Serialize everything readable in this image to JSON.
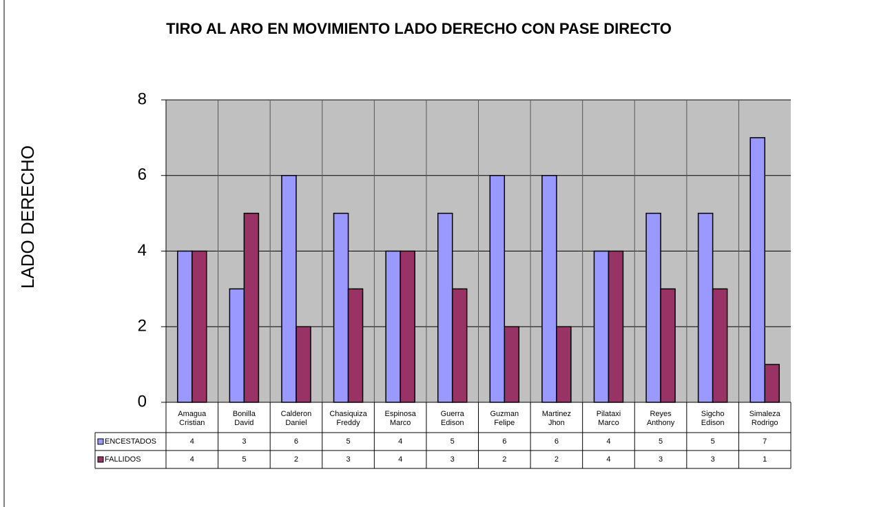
{
  "chart_data": {
    "type": "bar",
    "title": "TIRO AL ARO EN MOVIMIENTO LADO DERECHO CON PASE DIRECTO",
    "y_label": "LADO DERECHO",
    "categories": [
      "Amagua Cristian",
      "Bonilla David",
      "Calderon Daniel",
      "Chasiquiza Freddy",
      "Espinosa Marco",
      "Guerra Edison",
      "Guzman Felipe",
      "Martinez Jhon",
      "Pilataxi Marco",
      "Reyes Anthony",
      "Sigcho Edison",
      "Simaleza Rodrigo"
    ],
    "series": [
      {
        "name": "ENCESTADOS",
        "color": "#9999ff",
        "values": [
          4,
          3,
          6,
          5,
          4,
          5,
          6,
          6,
          4,
          5,
          5,
          7
        ]
      },
      {
        "name": "FALLIDOS",
        "color": "#993366",
        "values": [
          4,
          5,
          2,
          3,
          4,
          3,
          2,
          2,
          4,
          3,
          3,
          1
        ]
      }
    ],
    "ylim": [
      0,
      8
    ],
    "yticks": [
      0,
      2,
      4,
      6,
      8
    ],
    "grid": true,
    "data_table": true
  }
}
